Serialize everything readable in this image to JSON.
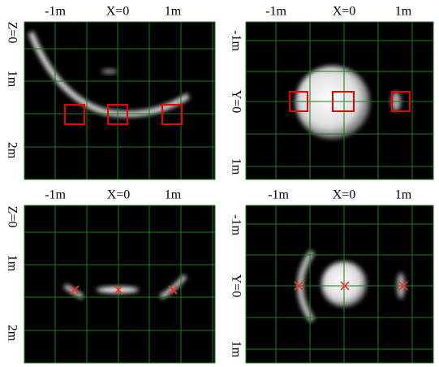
{
  "panels": [
    {
      "top_labels": [
        "-1m",
        "X=0",
        "1m"
      ],
      "side_labels": [
        "Z=0",
        "1m",
        "2m"
      ]
    },
    {
      "top_labels": [
        "-1m",
        "X=0",
        "1m"
      ],
      "side_labels": [
        "-1m",
        "Y=0",
        "1m"
      ]
    },
    {
      "top_labels": [
        "-1m",
        "X=0",
        "1m"
      ],
      "side_labels": [
        "Z=0",
        "1m",
        "2m"
      ]
    },
    {
      "top_labels": [
        "-1m",
        "X=0",
        "1m"
      ],
      "side_labels": [
        "-1m",
        "Y=0",
        "1m"
      ]
    }
  ]
}
